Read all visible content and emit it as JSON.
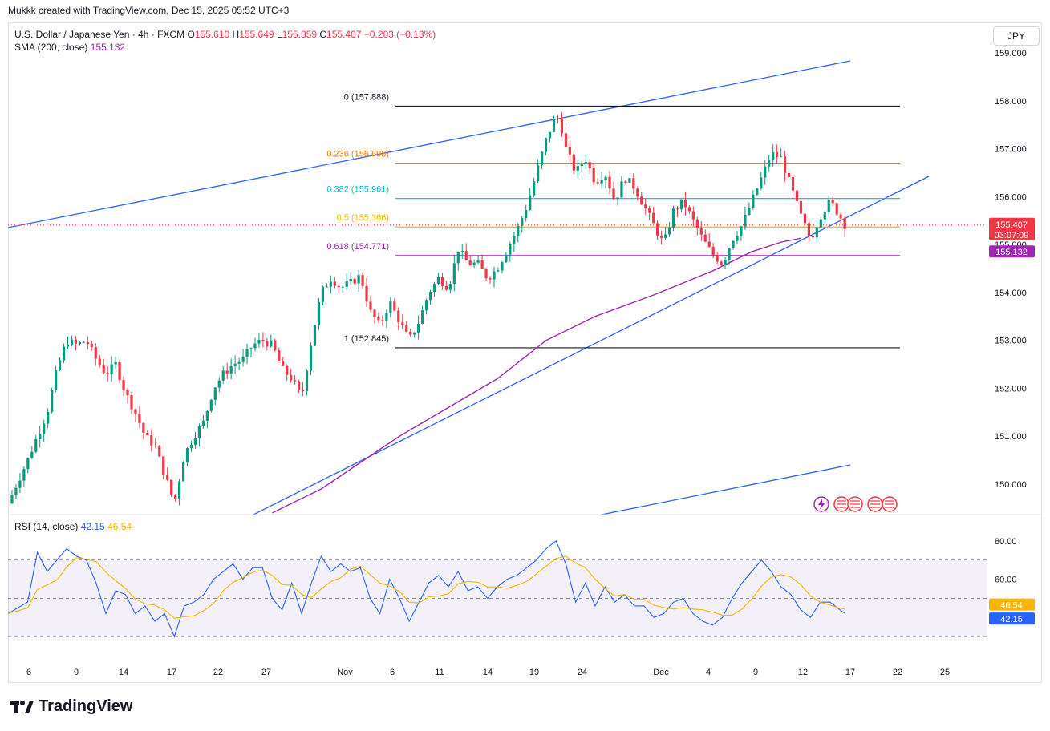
{
  "header": {
    "attribution": "Mukkk created with TradingView.com, Dec 15, 2025 05:52 UTC+3"
  },
  "legend": {
    "symbol": "U.S. Dollar / Japanese Yen · 4h · FXCM",
    "o_label": "O",
    "o": "155.610",
    "h_label": "H",
    "h": "155.649",
    "l_label": "L",
    "l": "155.359",
    "c_label": "C",
    "c": "155.407",
    "change": "−0.203 (−0.13%)",
    "sma_label": "SMA (200, close)",
    "sma_value": "155.132"
  },
  "currency_button": "JPY",
  "price_axis": [
    "159.000",
    "158.000",
    "157.000",
    "156.000",
    "155.000",
    "154.000",
    "153.000",
    "152.000",
    "151.000",
    "150.000"
  ],
  "price_badges": {
    "last": "155.407",
    "countdown": "03:07:09",
    "sma": "155.132"
  },
  "rsi": {
    "label": "RSI (14, close)",
    "value": "42.15",
    "ma_value": "46.54",
    "axis": [
      "80.00",
      "60.00"
    ]
  },
  "time_axis": [
    "6",
    "9",
    "14",
    "17",
    "22",
    "27",
    "Nov",
    "6",
    "11",
    "14",
    "19",
    "24",
    "Dec",
    "4",
    "9",
    "12",
    "17",
    "22",
    "25"
  ],
  "fib_levels": [
    {
      "label": "0 (157.888)",
      "price": 157.888,
      "color": "#131722"
    },
    {
      "label": "0.236 (156.698)",
      "price": 156.698,
      "color": "#f57c00"
    },
    {
      "label": "0.382 (155.961)",
      "price": 155.961,
      "color": "#00bcd4"
    },
    {
      "label": "0.5 (155.366)",
      "price": 155.366,
      "color": "#f7b500"
    },
    {
      "label": "0.618 (154.771)",
      "price": 154.771,
      "color": "#9c27b0"
    },
    {
      "label": "1 (152.845)",
      "price": 152.845,
      "color": "#131722"
    }
  ],
  "colors": {
    "up": "#089981",
    "down": "#f23645",
    "trendline": "#2962ff",
    "sma": "#9c27b0",
    "rsi": "#2962ff",
    "rsi_ma": "#f7b500"
  },
  "chart_data": {
    "type": "candlestick",
    "timeframe": "4h",
    "ylim": [
      149.4,
      159.6
    ],
    "sma_200": [
      [
        0.27,
        149.4
      ],
      [
        0.32,
        149.9
      ],
      [
        0.4,
        151.0
      ],
      [
        0.5,
        152.2
      ],
      [
        0.55,
        153.0
      ],
      [
        0.6,
        153.5
      ],
      [
        0.66,
        153.95
      ],
      [
        0.72,
        154.45
      ],
      [
        0.76,
        154.85
      ],
      [
        0.79,
        155.05
      ],
      [
        0.81,
        155.13
      ]
    ],
    "close_path": [
      [
        0.0,
        149.6
      ],
      [
        0.02,
        150.5
      ],
      [
        0.04,
        151.5
      ],
      [
        0.05,
        152.4
      ],
      [
        0.06,
        153.0
      ],
      [
        0.07,
        152.9
      ],
      [
        0.08,
        153.0
      ],
      [
        0.09,
        152.6
      ],
      [
        0.1,
        152.3
      ],
      [
        0.11,
        152.5
      ],
      [
        0.12,
        151.9
      ],
      [
        0.13,
        151.5
      ],
      [
        0.14,
        151.0
      ],
      [
        0.15,
        150.8
      ],
      [
        0.16,
        150.2
      ],
      [
        0.17,
        149.6
      ],
      [
        0.18,
        150.6
      ],
      [
        0.19,
        151.0
      ],
      [
        0.2,
        151.3
      ],
      [
        0.21,
        152.0
      ],
      [
        0.22,
        152.3
      ],
      [
        0.23,
        152.5
      ],
      [
        0.24,
        152.6
      ],
      [
        0.25,
        152.9
      ],
      [
        0.26,
        153.0
      ],
      [
        0.27,
        152.9
      ],
      [
        0.28,
        152.4
      ],
      [
        0.29,
        152.2
      ],
      [
        0.3,
        151.8
      ],
      [
        0.31,
        153.0
      ],
      [
        0.32,
        154.0
      ],
      [
        0.33,
        154.3
      ],
      [
        0.34,
        154.1
      ],
      [
        0.35,
        154.2
      ],
      [
        0.36,
        154.35
      ],
      [
        0.37,
        153.6
      ],
      [
        0.38,
        153.3
      ],
      [
        0.39,
        153.8
      ],
      [
        0.4,
        153.4
      ],
      [
        0.41,
        153.0
      ],
      [
        0.42,
        153.4
      ],
      [
        0.43,
        154.0
      ],
      [
        0.44,
        154.3
      ],
      [
        0.45,
        154.1
      ],
      [
        0.46,
        154.9
      ],
      [
        0.47,
        154.6
      ],
      [
        0.48,
        154.6
      ],
      [
        0.49,
        154.3
      ],
      [
        0.5,
        154.5
      ],
      [
        0.51,
        154.9
      ],
      [
        0.52,
        155.3
      ],
      [
        0.53,
        155.8
      ],
      [
        0.54,
        156.5
      ],
      [
        0.55,
        157.2
      ],
      [
        0.56,
        157.7
      ],
      [
        0.565,
        157.5
      ],
      [
        0.57,
        157.0
      ],
      [
        0.58,
        156.5
      ],
      [
        0.59,
        156.8
      ],
      [
        0.6,
        156.3
      ],
      [
        0.61,
        156.5
      ],
      [
        0.62,
        155.9
      ],
      [
        0.63,
        156.4
      ],
      [
        0.64,
        156.2
      ],
      [
        0.65,
        155.8
      ],
      [
        0.66,
        155.4
      ],
      [
        0.67,
        155.0
      ],
      [
        0.68,
        155.7
      ],
      [
        0.69,
        155.9
      ],
      [
        0.7,
        155.5
      ],
      [
        0.71,
        155.1
      ],
      [
        0.72,
        154.8
      ],
      [
        0.73,
        154.6
      ],
      [
        0.74,
        155.1
      ],
      [
        0.75,
        155.4
      ],
      [
        0.76,
        155.9
      ],
      [
        0.77,
        156.4
      ],
      [
        0.78,
        156.9
      ],
      [
        0.79,
        156.8
      ],
      [
        0.8,
        156.2
      ],
      [
        0.81,
        155.6
      ],
      [
        0.82,
        155.1
      ],
      [
        0.83,
        155.6
      ],
      [
        0.84,
        155.9
      ],
      [
        0.85,
        155.6
      ],
      [
        0.855,
        155.41
      ]
    ],
    "rsi_path": [
      [
        0.0,
        42
      ],
      [
        0.02,
        48
      ],
      [
        0.03,
        74
      ],
      [
        0.04,
        64
      ],
      [
        0.05,
        70
      ],
      [
        0.06,
        76
      ],
      [
        0.07,
        72
      ],
      [
        0.08,
        70
      ],
      [
        0.09,
        58
      ],
      [
        0.1,
        42
      ],
      [
        0.11,
        54
      ],
      [
        0.12,
        52
      ],
      [
        0.13,
        42
      ],
      [
        0.14,
        46
      ],
      [
        0.15,
        38
      ],
      [
        0.16,
        42
      ],
      [
        0.17,
        30
      ],
      [
        0.18,
        46
      ],
      [
        0.19,
        48
      ],
      [
        0.2,
        52
      ],
      [
        0.21,
        60
      ],
      [
        0.22,
        64
      ],
      [
        0.23,
        68
      ],
      [
        0.24,
        60
      ],
      [
        0.25,
        66
      ],
      [
        0.26,
        66
      ],
      [
        0.27,
        50
      ],
      [
        0.28,
        44
      ],
      [
        0.29,
        58
      ],
      [
        0.3,
        42
      ],
      [
        0.31,
        58
      ],
      [
        0.32,
        72
      ],
      [
        0.33,
        64
      ],
      [
        0.34,
        68
      ],
      [
        0.35,
        64
      ],
      [
        0.36,
        66
      ],
      [
        0.37,
        50
      ],
      [
        0.38,
        42
      ],
      [
        0.39,
        60
      ],
      [
        0.4,
        50
      ],
      [
        0.41,
        38
      ],
      [
        0.42,
        48
      ],
      [
        0.43,
        58
      ],
      [
        0.44,
        62
      ],
      [
        0.45,
        56
      ],
      [
        0.46,
        64
      ],
      [
        0.47,
        54
      ],
      [
        0.48,
        56
      ],
      [
        0.49,
        50
      ],
      [
        0.5,
        56
      ],
      [
        0.51,
        60
      ],
      [
        0.52,
        62
      ],
      [
        0.53,
        66
      ],
      [
        0.54,
        70
      ],
      [
        0.55,
        76
      ],
      [
        0.56,
        80
      ],
      [
        0.57,
        68
      ],
      [
        0.58,
        48
      ],
      [
        0.59,
        58
      ],
      [
        0.6,
        46
      ],
      [
        0.61,
        56
      ],
      [
        0.62,
        48
      ],
      [
        0.63,
        52
      ],
      [
        0.64,
        46
      ],
      [
        0.65,
        46
      ],
      [
        0.66,
        40
      ],
      [
        0.67,
        42
      ],
      [
        0.68,
        48
      ],
      [
        0.69,
        50
      ],
      [
        0.7,
        42
      ],
      [
        0.71,
        38
      ],
      [
        0.72,
        36
      ],
      [
        0.73,
        40
      ],
      [
        0.74,
        50
      ],
      [
        0.75,
        58
      ],
      [
        0.76,
        64
      ],
      [
        0.77,
        70
      ],
      [
        0.78,
        64
      ],
      [
        0.79,
        56
      ],
      [
        0.8,
        52
      ],
      [
        0.81,
        44
      ],
      [
        0.82,
        40
      ],
      [
        0.83,
        48
      ],
      [
        0.84,
        48
      ],
      [
        0.85,
        44
      ],
      [
        0.855,
        42.15
      ]
    ],
    "rsi_ylim": [
      20,
      90
    ],
    "rsi_bands": [
      70,
      50,
      30
    ]
  }
}
